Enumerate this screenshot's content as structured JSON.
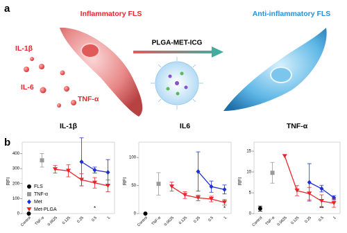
{
  "panel_a": {
    "label": "a",
    "left_title": "Inflammatory FLS",
    "right_title": "Anti-inflammatory FLS",
    "arrow_label": "PLGA-MET-ICG",
    "cytokines": [
      "IL-1β",
      "IL-6",
      "TNF-α"
    ]
  },
  "panel_b": {
    "label": "b"
  },
  "chart_data": [
    {
      "type": "line",
      "title": "IL-1β",
      "ylabel": "RFI",
      "categories": [
        "Control",
        "TNF-α",
        "0.0625",
        "0.125",
        "0.25",
        "0.5",
        "1"
      ],
      "ylim": [
        0,
        430
      ],
      "yticks": [
        0,
        100,
        200,
        300,
        400
      ],
      "legend": "lower-left",
      "series": [
        {
          "name": "FLS",
          "color": "#000000",
          "marker": "circle",
          "line": false,
          "values": [
            0,
            null,
            null,
            null,
            null,
            null,
            null
          ],
          "errors": [
            null,
            null,
            null,
            null,
            null,
            null,
            null
          ]
        },
        {
          "name": "TNF-α",
          "color": "#999999",
          "marker": "square",
          "line": false,
          "values": [
            null,
            355,
            null,
            null,
            null,
            null,
            null
          ],
          "errors": [
            null,
            45,
            null,
            null,
            null,
            null,
            null
          ]
        },
        {
          "name": "Met",
          "color": "#1f2fd6",
          "marker": "diamond",
          "line": true,
          "values": [
            null,
            null,
            null,
            null,
            345,
            290,
            275
          ],
          "errors": [
            null,
            null,
            null,
            null,
            160,
            20,
            85
          ]
        },
        {
          "name": "Met-PLGA",
          "color": "#e8262c",
          "marker": "triangle-down",
          "line": true,
          "values": [
            null,
            null,
            295,
            285,
            225,
            205,
            185
          ],
          "errors": [
            null,
            null,
            25,
            40,
            40,
            35,
            40
          ]
        }
      ],
      "annotations": [
        {
          "text": "*",
          "at": "0.5"
        }
      ]
    },
    {
      "type": "line",
      "title": "IL6",
      "ylabel": "RFI",
      "categories": [
        "Control",
        "TNF-α",
        "0.0625",
        "0.125",
        "0.25",
        "0.5",
        "1"
      ],
      "ylim": [
        0,
        115
      ],
      "yticks": [
        0,
        50,
        100
      ],
      "series": [
        {
          "color": "#000000",
          "marker": "circle",
          "line": false,
          "values": [
            0,
            null,
            null,
            null,
            null,
            null,
            null
          ],
          "errors": [
            null,
            null,
            null,
            null,
            null,
            null,
            null
          ]
        },
        {
          "color": "#999999",
          "marker": "square",
          "line": false,
          "values": [
            null,
            53,
            null,
            null,
            null,
            null,
            null
          ],
          "errors": [
            null,
            20,
            null,
            null,
            null,
            null,
            null
          ]
        },
        {
          "color": "#1f2fd6",
          "marker": "diamond",
          "line": true,
          "values": [
            null,
            null,
            null,
            null,
            75,
            48,
            43
          ],
          "errors": [
            null,
            null,
            null,
            null,
            35,
            10,
            8
          ]
        },
        {
          "color": "#e8262c",
          "marker": "triangle-down",
          "line": true,
          "values": [
            null,
            null,
            48,
            33,
            28,
            26,
            20
          ],
          "errors": [
            null,
            null,
            8,
            6,
            5,
            5,
            5
          ]
        }
      ],
      "annotations": [
        {
          "text": "*",
          "at": "1"
        }
      ]
    },
    {
      "type": "line",
      "title": "TNF-α",
      "ylabel": "RFI",
      "categories": [
        "Control",
        "TNF-α",
        "0.0625",
        "0.125",
        "0.25",
        "0.5",
        "1"
      ],
      "ylim": [
        0,
        15.5
      ],
      "yticks": [
        0,
        5,
        10,
        15
      ],
      "series": [
        {
          "color": "#000000",
          "marker": "circle",
          "line": false,
          "values": [
            1.2,
            null,
            null,
            null,
            null,
            null,
            null
          ],
          "errors": [
            0.6,
            null,
            null,
            null,
            null,
            null,
            null
          ]
        },
        {
          "color": "#999999",
          "marker": "square",
          "line": false,
          "values": [
            null,
            9.8,
            null,
            null,
            null,
            null,
            null
          ],
          "errors": [
            null,
            2.5,
            null,
            null,
            null,
            null,
            null
          ]
        },
        {
          "color": "#1f2fd6",
          "marker": "diamond",
          "line": true,
          "values": [
            null,
            null,
            null,
            null,
            7.5,
            6,
            3.8
          ],
          "errors": [
            null,
            null,
            null,
            null,
            4.5,
            0.8,
            0.5
          ]
        },
        {
          "color": "#e8262c",
          "marker": "triangle-down",
          "line": true,
          "values": [
            null,
            null,
            13.8,
            5.5,
            4.8,
            3,
            2.5
          ],
          "errors": [
            null,
            null,
            null,
            1.2,
            1.5,
            1.5,
            1
          ]
        }
      ],
      "annotations": [
        {
          "text": "**",
          "at": "0.5"
        }
      ]
    }
  ]
}
